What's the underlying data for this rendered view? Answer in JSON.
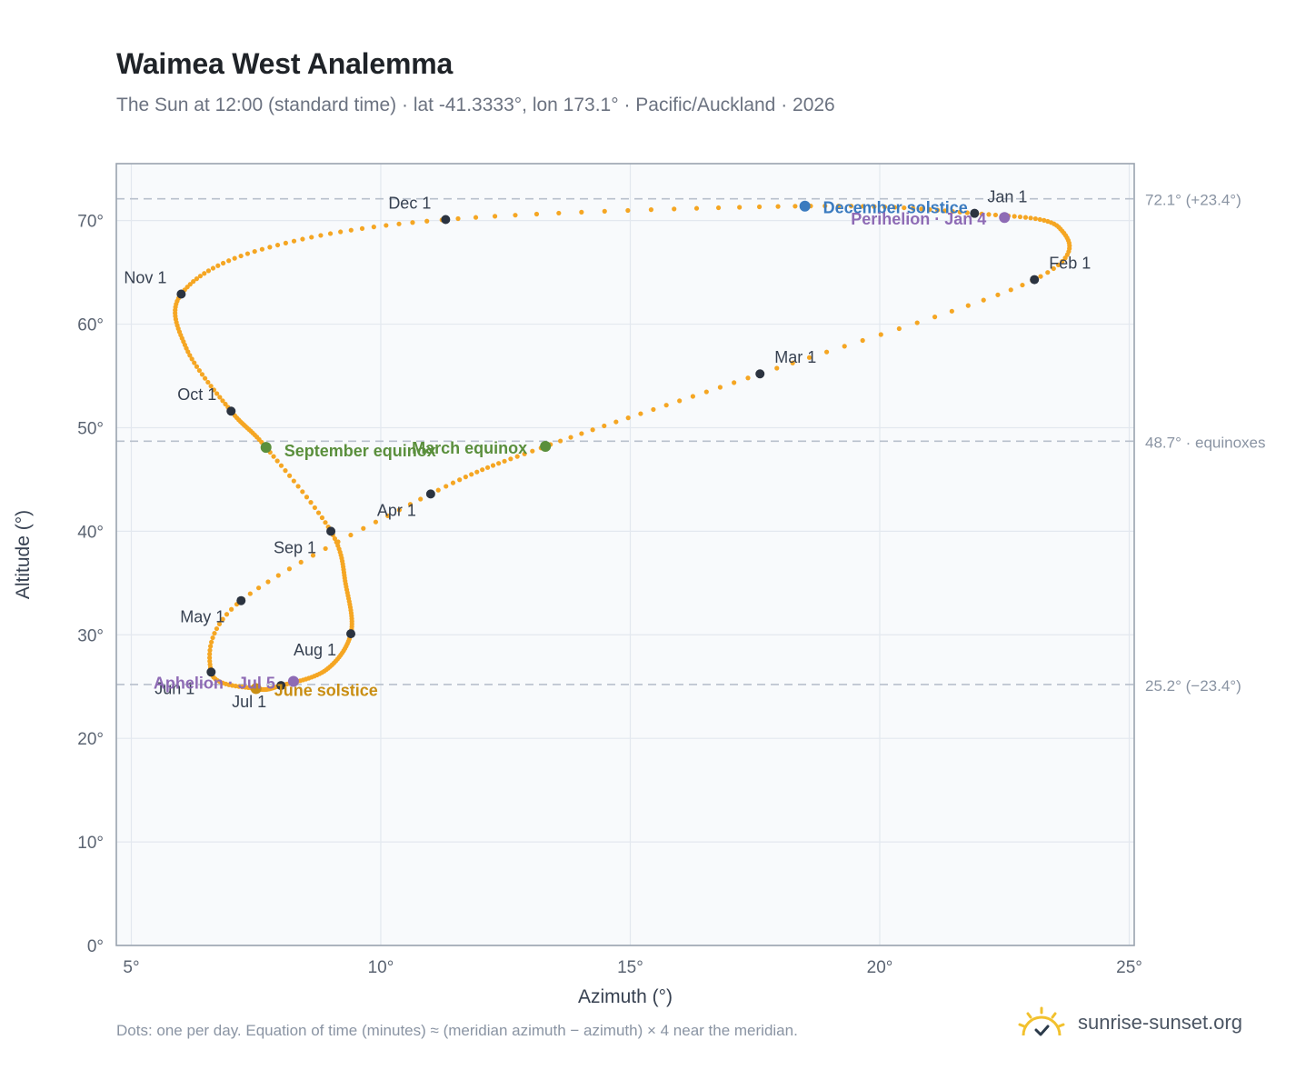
{
  "header": {
    "title": "Waimea West Analemma",
    "subtitle": "The Sun at 12:00 (standard time) · lat -41.3333°, lon 173.1° · Pacific/Auckland · 2026"
  },
  "footer": {
    "note": "Dots: one per day. Equation of time (minutes) ≈ (meridian azimuth − azimuth) × 4 near the meridian.",
    "brand": "sunrise-sunset.org",
    "brand_icon": "sun-logo-icon"
  },
  "chart_data": {
    "type": "scatter",
    "title": "Waimea West Analemma",
    "xlabel": "Azimuth (°)",
    "ylabel": "Altitude (°)",
    "xlim": [
      4.7,
      25.1
    ],
    "ylim": [
      0,
      75.5
    ],
    "x_ticks": [
      5,
      10,
      15,
      20,
      25
    ],
    "x_tick_labels": [
      "5°",
      "10°",
      "15°",
      "20°",
      "25°"
    ],
    "y_ticks": [
      0,
      10,
      20,
      30,
      40,
      50,
      60,
      70
    ],
    "y_tick_labels": [
      "0°",
      "10°",
      "20°",
      "30°",
      "40°",
      "50°",
      "60°",
      "70°"
    ],
    "grid": true,
    "reference_lines": [
      {
        "y": 72.1,
        "label": "72.1° (+23.4°)"
      },
      {
        "y": 48.7,
        "label": "48.7° · equinoxes"
      },
      {
        "y": 25.2,
        "label": "25.2° (−23.4°)"
      }
    ],
    "series": [
      {
        "kind": "daily-path",
        "color": "#f5a623",
        "anchors": [
          {
            "date": "Jan 1",
            "x": 21.9,
            "y": 70.7
          },
          {
            "date": "Jan 16",
            "x": 23.6,
            "y": 69.3
          },
          {
            "date": "Feb 1",
            "x": 23.1,
            "y": 64.3
          },
          {
            "date": "Mar 1",
            "x": 17.6,
            "y": 55.2
          },
          {
            "date": "Mar 20",
            "x": 13.3,
            "y": 48.2
          },
          {
            "date": "Apr 1",
            "x": 11.0,
            "y": 43.6
          },
          {
            "date": "May 1",
            "x": 7.2,
            "y": 33.3
          },
          {
            "date": "Jun 1",
            "x": 6.6,
            "y": 26.4
          },
          {
            "date": "Jun 21",
            "x": 7.5,
            "y": 24.8
          },
          {
            "date": "Jul 1",
            "x": 8.0,
            "y": 25.1
          },
          {
            "date": "Jul 16",
            "x": 8.9,
            "y": 26.6
          },
          {
            "date": "Aug 1",
            "x": 9.4,
            "y": 30.1
          },
          {
            "date": "Aug 16",
            "x": 9.3,
            "y": 34.8
          },
          {
            "date": "Sep 1",
            "x": 9.0,
            "y": 40.0
          },
          {
            "date": "Sep 23",
            "x": 7.7,
            "y": 48.1
          },
          {
            "date": "Oct 1",
            "x": 7.0,
            "y": 51.6
          },
          {
            "date": "Oct 16",
            "x": 6.1,
            "y": 57.7
          },
          {
            "date": "Nov 1",
            "x": 6.0,
            "y": 62.9
          },
          {
            "date": "Nov 16",
            "x": 7.6,
            "y": 67.2
          },
          {
            "date": "Dec 1",
            "x": 11.3,
            "y": 70.1
          },
          {
            "date": "Dec 21",
            "x": 18.5,
            "y": 71.4
          },
          {
            "date": "Jan 1",
            "x": 21.9,
            "y": 70.7
          }
        ]
      }
    ],
    "month_markers": [
      {
        "label": "Jan 1",
        "x": 21.9,
        "y": 70.7,
        "anchor": "start",
        "dx": 14,
        "dy": -12
      },
      {
        "label": "Feb 1",
        "x": 23.1,
        "y": 64.3,
        "anchor": "start",
        "dx": 16,
        "dy": -12
      },
      {
        "label": "Mar 1",
        "x": 17.6,
        "y": 55.2,
        "anchor": "start",
        "dx": 16,
        "dy": -12
      },
      {
        "label": "Apr 1",
        "x": 11.0,
        "y": 43.6,
        "anchor": "end",
        "dx": -16,
        "dy": 24
      },
      {
        "label": "May 1",
        "x": 7.2,
        "y": 33.3,
        "anchor": "end",
        "dx": -18,
        "dy": 24
      },
      {
        "label": "Jun 1",
        "x": 6.6,
        "y": 26.4,
        "anchor": "end",
        "dx": -18,
        "dy": 24
      },
      {
        "label": "Jul 1",
        "x": 8.0,
        "y": 25.1,
        "anchor": "end",
        "dx": -16,
        "dy": 24
      },
      {
        "label": "Aug 1",
        "x": 9.4,
        "y": 30.1,
        "anchor": "end",
        "dx": -16,
        "dy": 24
      },
      {
        "label": "Sep 1",
        "x": 9.0,
        "y": 40.0,
        "anchor": "end",
        "dx": -16,
        "dy": 24
      },
      {
        "label": "Oct 1",
        "x": 7.0,
        "y": 51.6,
        "anchor": "end",
        "dx": -16,
        "dy": -12
      },
      {
        "label": "Nov 1",
        "x": 6.0,
        "y": 62.9,
        "anchor": "end",
        "dx": -16,
        "dy": -12
      },
      {
        "label": "Dec 1",
        "x": 11.3,
        "y": 70.1,
        "anchor": "end",
        "dx": -16,
        "dy": -12
      }
    ],
    "events": [
      {
        "label": "December solstice",
        "x": 18.5,
        "y": 71.4,
        "color": "#3b7bbf",
        "anchor": "start",
        "dx": 20,
        "dy": 8
      },
      {
        "label": "Perihelion · Jan 4",
        "x": 22.5,
        "y": 70.3,
        "color": "#8e6bb5",
        "anchor": "end",
        "dx": -20,
        "dy": 8
      },
      {
        "label": "March equinox",
        "x": 13.3,
        "y": 48.2,
        "color": "#5a8f3c",
        "anchor": "end",
        "dx": -20,
        "dy": 8
      },
      {
        "label": "September equinox",
        "x": 7.7,
        "y": 48.1,
        "color": "#5a8f3c",
        "anchor": "start",
        "dx": 20,
        "dy": 10
      },
      {
        "label": "June solstice",
        "x": 7.5,
        "y": 24.8,
        "color": "#c98e13",
        "anchor": "start",
        "dx": 20,
        "dy": 8
      },
      {
        "label": "Aphelion · Jul 5",
        "x": 8.25,
        "y": 25.5,
        "color": "#8e6bb5",
        "anchor": "end",
        "dx": -20,
        "dy": 8
      }
    ]
  }
}
